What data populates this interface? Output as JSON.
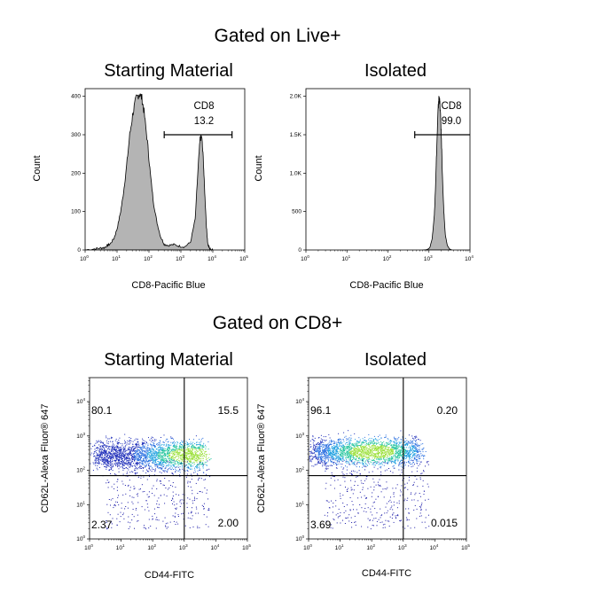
{
  "sections": [
    {
      "title": "Gated on Live+"
    },
    {
      "title": "Gated on CD8+"
    }
  ],
  "chart_data": [
    {
      "type": "histogram",
      "title": "Starting Material",
      "xlabel": "CD8-Pacific Blue",
      "ylabel": "Count",
      "x_scale": "log",
      "xlim": [
        1,
        100000
      ],
      "ylim": [
        0,
        420
      ],
      "x_ticks": [
        "10",
        "10",
        "10",
        "10",
        "10",
        "10"
      ],
      "x_tick_exponents": [
        "0",
        "1",
        "2",
        "3",
        "4",
        "5"
      ],
      "y_ticks": [
        "0",
        "100",
        "200",
        "300",
        "400"
      ],
      "y_tick_values": [
        0,
        100,
        200,
        300,
        400
      ],
      "gate": {
        "label": "CD8",
        "percent": "13.2",
        "range": [
          300,
          40000
        ],
        "level": 300
      },
      "curve": [
        [
          1,
          0
        ],
        [
          2,
          3
        ],
        [
          3,
          5
        ],
        [
          4,
          6
        ],
        [
          5,
          12
        ],
        [
          6,
          15
        ],
        [
          8,
          30
        ],
        [
          10,
          55
        ],
        [
          13,
          100
        ],
        [
          16,
          150
        ],
        [
          20,
          220
        ],
        [
          25,
          300
        ],
        [
          32,
          360
        ],
        [
          40,
          395
        ],
        [
          50,
          408
        ],
        [
          60,
          395
        ],
        [
          70,
          360
        ],
        [
          90,
          280
        ],
        [
          110,
          200
        ],
        [
          140,
          120
        ],
        [
          180,
          70
        ],
        [
          230,
          35
        ],
        [
          300,
          15
        ],
        [
          400,
          12
        ],
        [
          600,
          14
        ],
        [
          900,
          10
        ],
        [
          1300,
          8
        ],
        [
          2000,
          20
        ],
        [
          2800,
          80
        ],
        [
          3500,
          220
        ],
        [
          4000,
          290
        ],
        [
          4500,
          295
        ],
        [
          5000,
          240
        ],
        [
          5600,
          150
        ],
        [
          6300,
          60
        ],
        [
          7000,
          15
        ],
        [
          8000,
          3
        ],
        [
          10000,
          0
        ]
      ]
    },
    {
      "type": "histogram",
      "title": "Isolated",
      "xlabel": "CD8-Pacific Blue",
      "ylabel": "Count",
      "x_scale": "log",
      "xlim": [
        1,
        10000
      ],
      "ylim": [
        0,
        2100
      ],
      "x_ticks": [
        "10",
        "10",
        "10",
        "10",
        "10"
      ],
      "x_tick_exponents": [
        "0",
        "1",
        "2",
        "3",
        "4"
      ],
      "y_ticks": [
        "0",
        "500",
        "1.0K",
        "1.5K",
        "2.0K"
      ],
      "y_tick_values": [
        0,
        500,
        1000,
        1500,
        2000
      ],
      "gate": {
        "label": "CD8",
        "percent": "99.0",
        "range": [
          450,
          10000
        ],
        "level": 1500
      },
      "curve": [
        [
          700,
          0
        ],
        [
          900,
          5
        ],
        [
          1050,
          30
        ],
        [
          1200,
          150
        ],
        [
          1350,
          450
        ],
        [
          1450,
          850
        ],
        [
          1550,
          1350
        ],
        [
          1650,
          1750
        ],
        [
          1720,
          1950
        ],
        [
          1780,
          1980
        ],
        [
          1850,
          1900
        ],
        [
          1950,
          1650
        ],
        [
          2050,
          1300
        ],
        [
          2150,
          900
        ],
        [
          2300,
          500
        ],
        [
          2500,
          200
        ],
        [
          2800,
          60
        ],
        [
          3200,
          10
        ],
        [
          3600,
          0
        ]
      ]
    },
    {
      "type": "scatter",
      "title": "Starting Material",
      "xlabel": "CD44-FITC",
      "ylabel": "CD62L-Alexa Fluor® 647",
      "x_scale": "log",
      "y_scale": "log",
      "xlim": [
        1,
        100000
      ],
      "ylim": [
        1,
        50000
      ],
      "x_ticks": [
        "10",
        "10",
        "10",
        "10",
        "10",
        "10"
      ],
      "x_tick_exponents": [
        "0",
        "1",
        "2",
        "3",
        "4",
        "5"
      ],
      "y_ticks": [
        "10",
        "10",
        "10",
        "10",
        "10"
      ],
      "y_tick_exponents": [
        "0",
        "1",
        "2",
        "3",
        "4"
      ],
      "quadrant_lines": {
        "x": 1000,
        "y": 70
      },
      "quadrants": {
        "upper_left": "80.1",
        "upper_right": "15.5",
        "lower_left": "2.37",
        "lower_right": "2.00"
      },
      "population": {
        "x_log_range": [
          0.2,
          3.6
        ],
        "y_log_center": 2.45,
        "y_log_spread": 0.22,
        "hotspot_x_log": 3.2
      }
    },
    {
      "type": "scatter",
      "title": "Isolated",
      "xlabel": "CD44-FITC",
      "ylabel": "CD62L-Alexa Fluor® 647",
      "x_scale": "log",
      "y_scale": "log",
      "xlim": [
        1,
        100000
      ],
      "ylim": [
        1,
        50000
      ],
      "x_ticks": [
        "10",
        "10",
        "10",
        "10",
        "10",
        "10"
      ],
      "x_tick_exponents": [
        "0",
        "1",
        "2",
        "3",
        "4",
        "5"
      ],
      "y_ticks": [
        "10",
        "10",
        "10",
        "10",
        "10"
      ],
      "y_tick_exponents": [
        "0",
        "1",
        "2",
        "3",
        "4"
      ],
      "quadrant_lines": {
        "x": 1000,
        "y": 70
      },
      "quadrants": {
        "upper_left": "96.1",
        "upper_right": "0.20",
        "lower_left": "3.69",
        "lower_right": "0.015"
      },
      "population": {
        "x_log_range": [
          0.1,
          3.5
        ],
        "y_log_center": 2.55,
        "y_log_spread": 0.2,
        "hotspot_x_log": 2.0
      }
    }
  ]
}
